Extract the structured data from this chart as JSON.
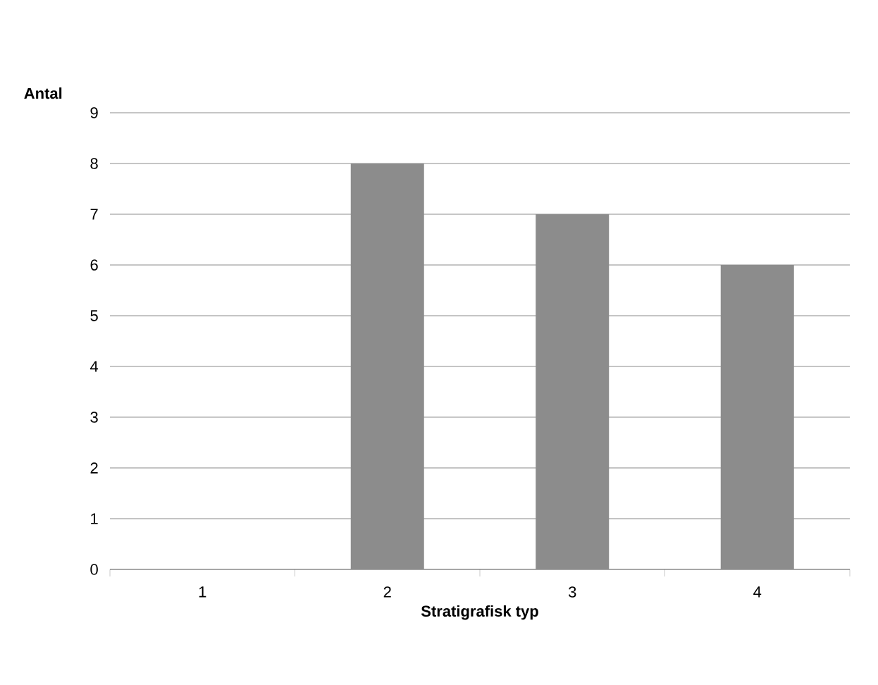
{
  "chart_data": {
    "type": "bar",
    "ylabel": "Antal",
    "xlabel": "Stratigrafisk typ",
    "categories": [
      "1",
      "2",
      "3",
      "4"
    ],
    "values": [
      0,
      8,
      7,
      6
    ],
    "color": "#8c8c8c",
    "ylim": [
      0,
      9
    ],
    "yticks": [
      0,
      1,
      2,
      3,
      4,
      5,
      6,
      7,
      8,
      9
    ],
    "grid": "y"
  }
}
